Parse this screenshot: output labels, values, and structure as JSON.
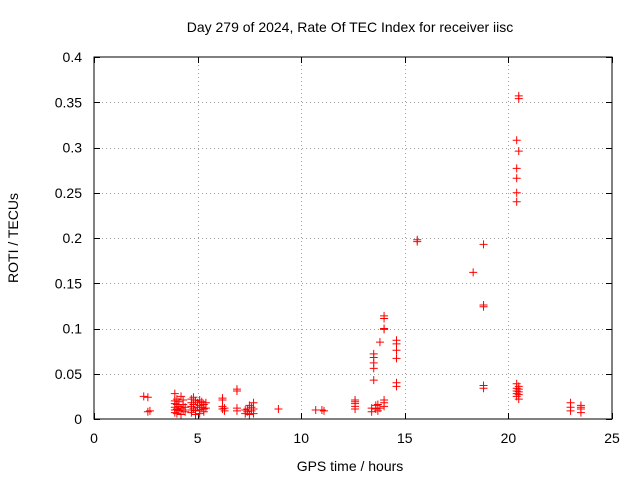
{
  "chart_data": {
    "type": "scatter",
    "title": "Day 279 of 2024, Rate Of TEC Index for receiver iisc",
    "xlabel": "GPS time / hours",
    "ylabel": "ROTI / TECUs",
    "xlim": [
      0,
      25
    ],
    "ylim": [
      0,
      0.4
    ],
    "xticks": [
      0,
      5,
      10,
      15,
      20,
      25
    ],
    "xtick_labels": [
      "0",
      "5",
      "10",
      "15",
      "20",
      "25"
    ],
    "yticks": [
      0,
      0.05,
      0.1,
      0.15,
      0.2,
      0.25,
      0.3,
      0.35,
      0.4
    ],
    "ytick_labels": [
      "0",
      "0.05",
      "0.1",
      "0.15",
      "0.2",
      "0.25",
      "0.3",
      "0.35",
      "0.4"
    ],
    "grid": true,
    "marker": "+",
    "color": "#ff0000",
    "series": [
      {
        "name": "ROTI",
        "points": [
          [
            2.4,
            0.025
          ],
          [
            2.6,
            0.024
          ],
          [
            2.6,
            0.008
          ],
          [
            2.7,
            0.009
          ],
          [
            3.9,
            0.028
          ],
          [
            3.9,
            0.02
          ],
          [
            3.9,
            0.017
          ],
          [
            3.9,
            0.013
          ],
          [
            3.9,
            0.01
          ],
          [
            3.9,
            0.007
          ],
          [
            4.0,
            0.022
          ],
          [
            4.0,
            0.016
          ],
          [
            4.0,
            0.011
          ],
          [
            4.0,
            0.006
          ],
          [
            4.1,
            0.019
          ],
          [
            4.1,
            0.014
          ],
          [
            4.1,
            0.009
          ],
          [
            4.2,
            0.025
          ],
          [
            4.2,
            0.012
          ],
          [
            4.2,
            0.005
          ],
          [
            4.3,
            0.021
          ],
          [
            4.3,
            0.016
          ],
          [
            4.3,
            0.01
          ],
          [
            4.4,
            0.013
          ],
          [
            4.4,
            0.008
          ],
          [
            4.7,
            0.022
          ],
          [
            4.7,
            0.018
          ],
          [
            4.7,
            0.014
          ],
          [
            4.7,
            0.01
          ],
          [
            4.7,
            0.007
          ],
          [
            4.8,
            0.024
          ],
          [
            4.8,
            0.016
          ],
          [
            4.8,
            0.012
          ],
          [
            4.9,
            0.02
          ],
          [
            4.9,
            0.009
          ],
          [
            4.9,
            0.005
          ],
          [
            5.0,
            0.018
          ],
          [
            5.0,
            0.013
          ],
          [
            5.1,
            0.021
          ],
          [
            5.1,
            0.015
          ],
          [
            5.1,
            0.01
          ],
          [
            5.1,
            0.006
          ],
          [
            5.2,
            0.019
          ],
          [
            5.2,
            0.013
          ],
          [
            5.3,
            0.016
          ],
          [
            5.3,
            0.011
          ],
          [
            5.3,
            0.008
          ],
          [
            5.4,
            0.018
          ],
          [
            5.4,
            0.012
          ],
          [
            6.2,
            0.023
          ],
          [
            6.2,
            0.021
          ],
          [
            6.2,
            0.014
          ],
          [
            6.2,
            0.011
          ],
          [
            6.3,
            0.012
          ],
          [
            6.3,
            0.009
          ],
          [
            6.9,
            0.033
          ],
          [
            6.9,
            0.031
          ],
          [
            6.9,
            0.012
          ],
          [
            6.9,
            0.009
          ],
          [
            7.3,
            0.01
          ],
          [
            7.3,
            0.006
          ],
          [
            7.4,
            0.011
          ],
          [
            7.4,
            0.008
          ],
          [
            7.5,
            0.015
          ],
          [
            7.5,
            0.005
          ],
          [
            7.6,
            0.013
          ],
          [
            7.6,
            0.009
          ],
          [
            7.7,
            0.018
          ],
          [
            7.7,
            0.011
          ],
          [
            7.7,
            0.006
          ],
          [
            8.9,
            0.011
          ],
          [
            10.7,
            0.01
          ],
          [
            11.0,
            0.01
          ],
          [
            11.1,
            0.009
          ],
          [
            12.6,
            0.021
          ],
          [
            12.6,
            0.019
          ],
          [
            12.6,
            0.017
          ],
          [
            12.6,
            0.014
          ],
          [
            12.6,
            0.011
          ],
          [
            13.4,
            0.012
          ],
          [
            13.4,
            0.008
          ],
          [
            13.5,
            0.043
          ],
          [
            13.5,
            0.056
          ],
          [
            13.5,
            0.062
          ],
          [
            13.5,
            0.068
          ],
          [
            13.5,
            0.072
          ],
          [
            13.6,
            0.015
          ],
          [
            13.6,
            0.011
          ],
          [
            13.7,
            0.016
          ],
          [
            13.7,
            0.009
          ],
          [
            13.8,
            0.012
          ],
          [
            13.8,
            0.085
          ],
          [
            14.0,
            0.114
          ],
          [
            14.0,
            0.111
          ],
          [
            14.0,
            0.1
          ],
          [
            14.0,
            0.099
          ],
          [
            14.0,
            0.021
          ],
          [
            14.0,
            0.018
          ],
          [
            14.0,
            0.014
          ],
          [
            14.6,
            0.087
          ],
          [
            14.6,
            0.083
          ],
          [
            14.6,
            0.076
          ],
          [
            14.6,
            0.067
          ],
          [
            14.6,
            0.04
          ],
          [
            14.6,
            0.036
          ],
          [
            15.6,
            0.198
          ],
          [
            15.6,
            0.196
          ],
          [
            18.3,
            0.162
          ],
          [
            18.8,
            0.193
          ],
          [
            18.8,
            0.126
          ],
          [
            18.8,
            0.124
          ],
          [
            18.8,
            0.037
          ],
          [
            18.8,
            0.034
          ],
          [
            20.4,
            0.308
          ],
          [
            20.4,
            0.277
          ],
          [
            20.4,
            0.266
          ],
          [
            20.4,
            0.25
          ],
          [
            20.4,
            0.24
          ],
          [
            20.5,
            0.357
          ],
          [
            20.5,
            0.354
          ],
          [
            20.5,
            0.296
          ],
          [
            20.4,
            0.039
          ],
          [
            20.4,
            0.034
          ],
          [
            20.4,
            0.031
          ],
          [
            20.4,
            0.028
          ],
          [
            20.4,
            0.025
          ],
          [
            20.5,
            0.036
          ],
          [
            20.5,
            0.033
          ],
          [
            20.5,
            0.03
          ],
          [
            20.5,
            0.027
          ],
          [
            20.5,
            0.022
          ],
          [
            23.0,
            0.018
          ],
          [
            23.0,
            0.013
          ],
          [
            23.0,
            0.009
          ],
          [
            23.5,
            0.015
          ],
          [
            23.5,
            0.013
          ],
          [
            23.5,
            0.011
          ],
          [
            23.5,
            0.007
          ]
        ]
      }
    ]
  }
}
